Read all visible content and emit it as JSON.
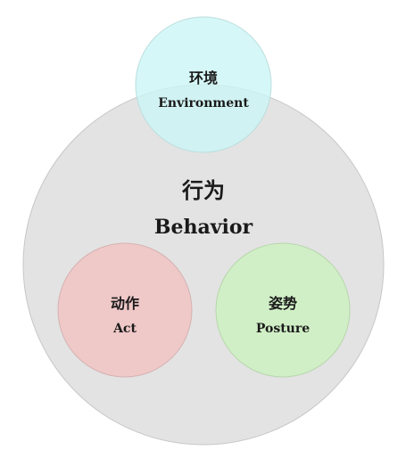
{
  "diagram": {
    "behavior": {
      "label_zh": "行为",
      "label_en": "Behavior",
      "fill": "#e3e3e3",
      "stroke": "#c7c7c7"
    },
    "environment": {
      "label_zh": "环境",
      "label_en": "Environment",
      "fill": "#ccf5f5",
      "stroke": "#bcdede"
    },
    "act": {
      "label_zh": "动作",
      "label_en": "Act",
      "fill": "#efc8c8",
      "stroke": "#d6b2b2"
    },
    "posture": {
      "label_zh": "姿势",
      "label_en": "Posture",
      "fill": "#d1efc6",
      "stroke": "#b7d6ad"
    }
  }
}
